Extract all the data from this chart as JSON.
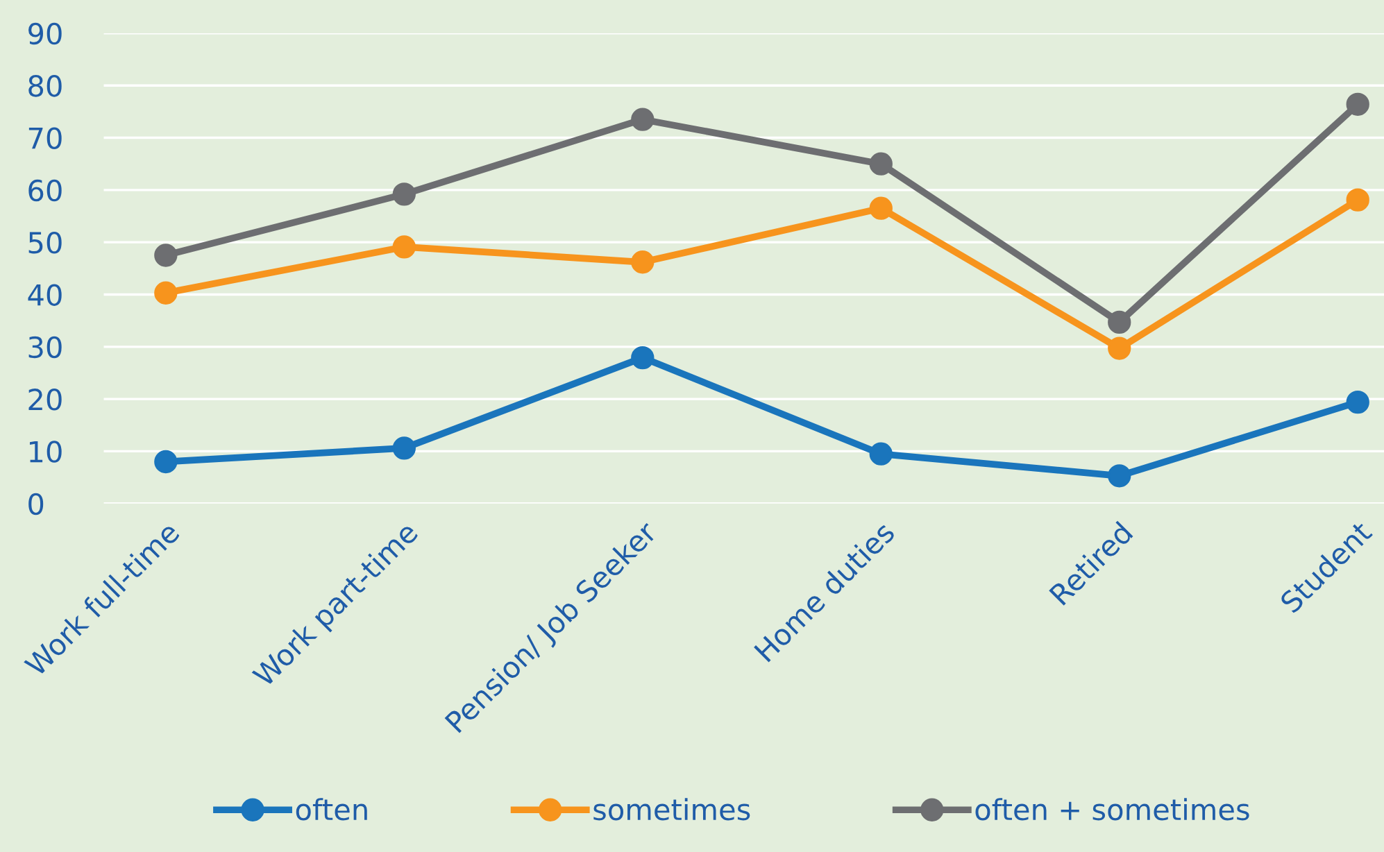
{
  "chart_data": {
    "type": "line",
    "categories": [
      "Work full-time",
      "Work part-time",
      "Pension/ Job Seeker",
      "Home duties",
      "Retired",
      "Student"
    ],
    "series": [
      {
        "name": "often",
        "color": "#1a75bc",
        "values": [
          8.0,
          10.6,
          27.9,
          9.5,
          5.3,
          19.4
        ]
      },
      {
        "name": "sometimes",
        "color": "#f7941d",
        "values": [
          40.3,
          49.1,
          46.2,
          56.5,
          29.7,
          58.1
        ]
      },
      {
        "name": "often + sometimes",
        "color": "#6d6e71",
        "values": [
          47.5,
          59.2,
          73.5,
          65.0,
          34.7,
          76.4
        ]
      }
    ],
    "ylim": [
      0,
      90
    ],
    "yticks": [
      0,
      10,
      20,
      30,
      40,
      50,
      60,
      70,
      80,
      90
    ],
    "grid": "y",
    "legend": "bottom",
    "marker": "circle",
    "line_style": "solid"
  }
}
